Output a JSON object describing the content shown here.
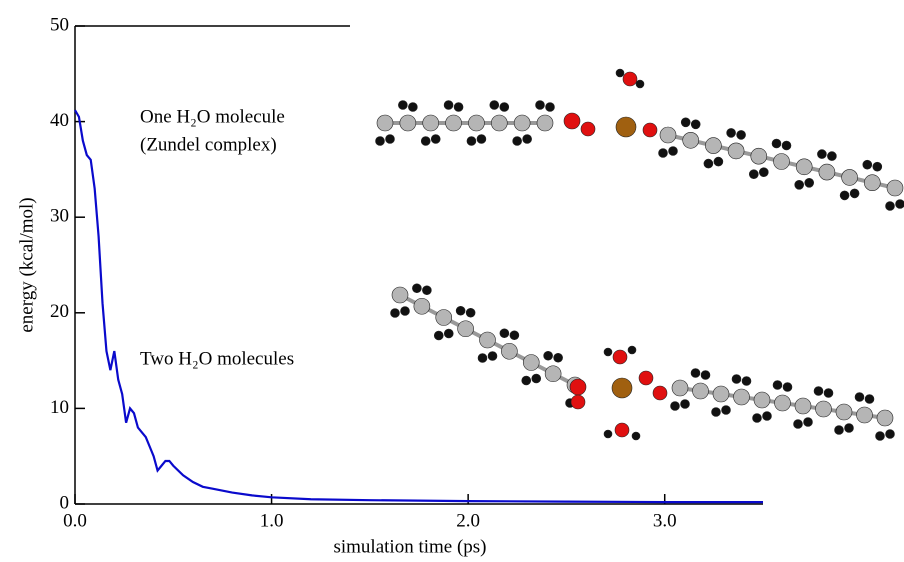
{
  "chart_data": {
    "type": "line",
    "x_label": "simulation time (ps)",
    "y_label": "energy (kcal/mol)",
    "annotations": [
      "One H₂O molecule",
      "(Zundel complex)",
      "Two H₂O molecules"
    ],
    "x": [
      0.0,
      0.02,
      0.04,
      0.06,
      0.08,
      0.1,
      0.12,
      0.14,
      0.16,
      0.18,
      0.2,
      0.22,
      0.24,
      0.26,
      0.28,
      0.3,
      0.32,
      0.34,
      0.36,
      0.38,
      0.4,
      0.42,
      0.44,
      0.46,
      0.48,
      0.5,
      0.55,
      0.6,
      0.65,
      0.7,
      0.8,
      0.9,
      1.0,
      1.2,
      1.5,
      2.0,
      2.5,
      3.0,
      3.5
    ],
    "series": [
      {
        "color": "#0a0acc",
        "values": [
          41.2,
          40.5,
          38,
          36.5,
          36,
          33,
          28,
          21,
          16,
          14,
          16,
          13,
          11.5,
          8.5,
          10,
          9.5,
          8,
          7.5,
          7,
          6,
          5,
          3.5,
          4,
          4.5,
          4.5,
          4,
          3,
          2.3,
          1.8,
          1.6,
          1.2,
          0.9,
          0.7,
          0.5,
          0.4,
          0.3,
          0.25,
          0.2,
          0.2
        ]
      }
    ],
    "xlim": [
      0,
      3.5
    ],
    "ylim": [
      0,
      50
    ],
    "xticks": [
      {
        "value": 0,
        "label": "0.0"
      },
      {
        "value": 1,
        "label": "1.0"
      },
      {
        "value": 2,
        "label": "2.0"
      },
      {
        "value": 3,
        "label": "3.0"
      }
    ],
    "yticks": [
      0,
      10,
      20,
      30,
      40,
      50
    ]
  }
}
